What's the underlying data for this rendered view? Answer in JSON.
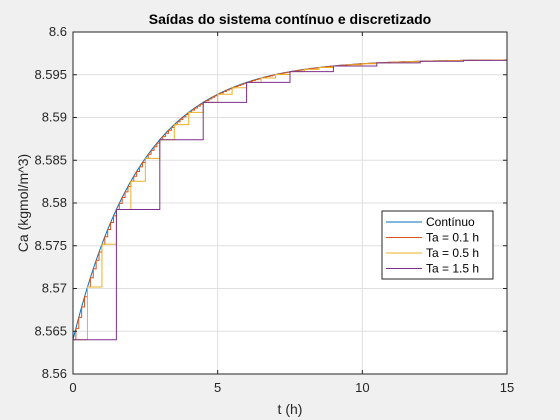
{
  "chart_data": {
    "type": "line",
    "title": "Saídas do sistema contínuo e discretizado",
    "xlabel": "t (h)",
    "ylabel": "Ca (kgmol/m^3)",
    "xlim": [
      0,
      15
    ],
    "ylim": [
      8.56,
      8.6
    ],
    "xticks": [
      0,
      5,
      10,
      15
    ],
    "yticks": [
      8.56,
      8.565,
      8.57,
      8.575,
      8.58,
      8.585,
      8.59,
      8.595,
      8.6
    ],
    "xtick_labels": [
      "0",
      "5",
      "10",
      "15"
    ],
    "ytick_labels": [
      "8.56",
      "8.565",
      "8.57",
      "8.575",
      "8.58",
      "8.585",
      "8.59",
      "8.595",
      "8.6"
    ],
    "grid": true,
    "legend_position": "right",
    "response_model": {
      "initial_value": 8.564,
      "final_value": 8.5968,
      "time_constant_h": 2.4
    },
    "series": [
      {
        "name": "Contínuo",
        "kind": "continuous",
        "color": "#0072BD"
      },
      {
        "name": "Ta = 0.1 h",
        "kind": "stairs",
        "sample_period_h": 0.1,
        "color": "#D95319"
      },
      {
        "name": "Ta = 0.5 h",
        "kind": "stairs",
        "sample_period_h": 0.5,
        "color": "#EDB120"
      },
      {
        "name": "Ta = 1.5 h",
        "kind": "stairs",
        "sample_period_h": 1.5,
        "color": "#7E2F8E"
      }
    ]
  }
}
